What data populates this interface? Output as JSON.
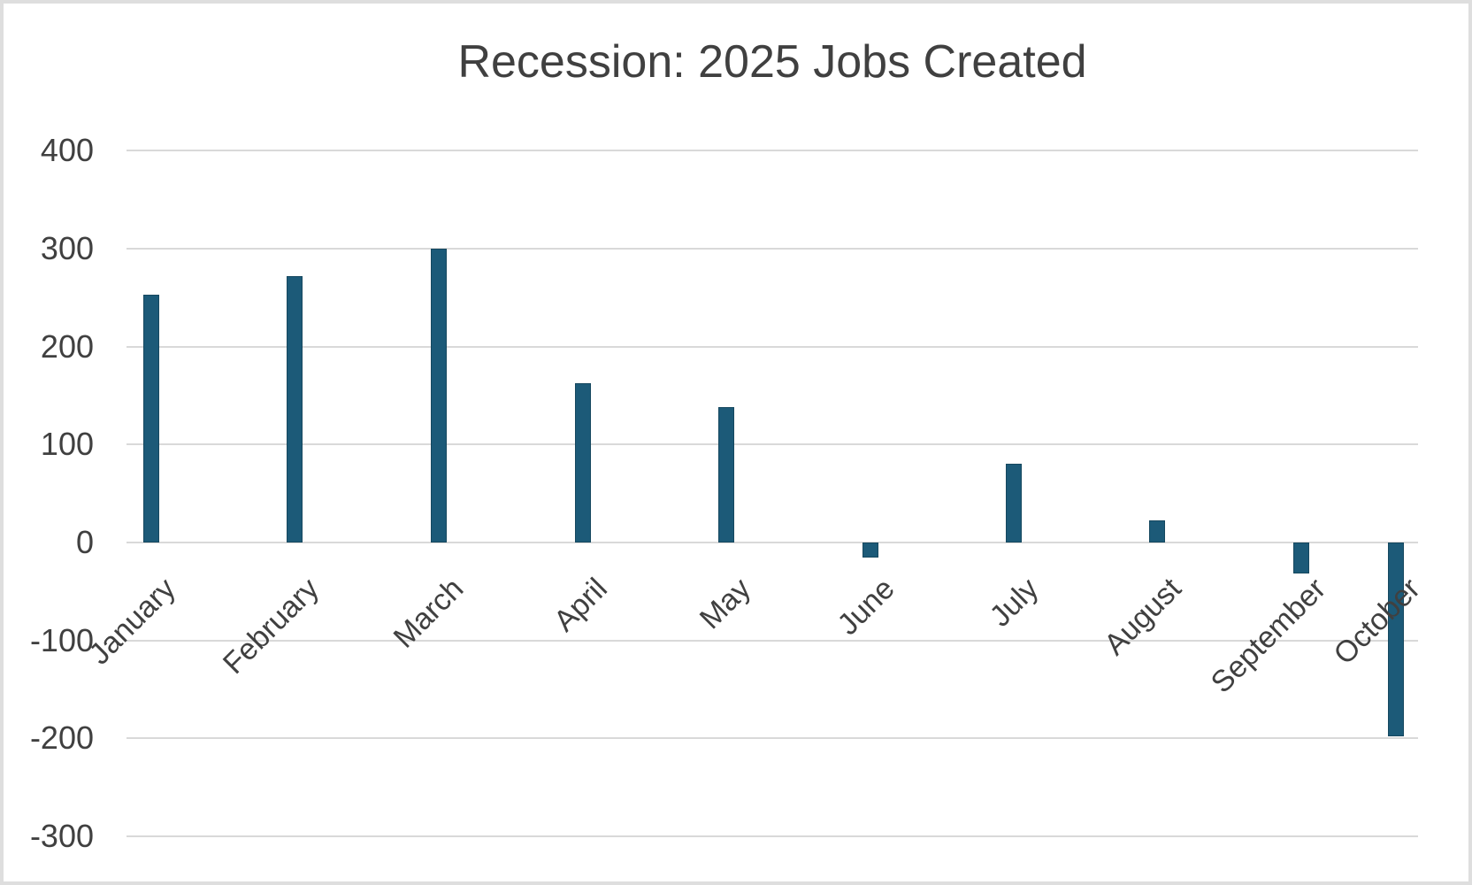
{
  "window": {
    "background_color": "#ffffff",
    "border_color": "#dedede"
  },
  "chart_data": {
    "type": "bar",
    "title": "Recession: 2025 Jobs Created",
    "categories": [
      "January",
      "February",
      "March",
      "April",
      "May",
      "June",
      "July",
      "August",
      "September",
      "October"
    ],
    "values": [
      253,
      272,
      300,
      163,
      138,
      -15,
      80,
      23,
      -32,
      -198
    ],
    "xlabel": "",
    "ylabel": "",
    "ylim": [
      -300,
      400
    ],
    "yticks": [
      400,
      300,
      200,
      100,
      0,
      -100,
      -200,
      -300
    ],
    "grid": "horizontal",
    "legend": "none",
    "bar_color": "#1c5a78",
    "gridline_color": "#d9d9d9",
    "tick_label_color": "#404040",
    "title_color": "#404040",
    "x_label_rotation_deg": 45
  }
}
